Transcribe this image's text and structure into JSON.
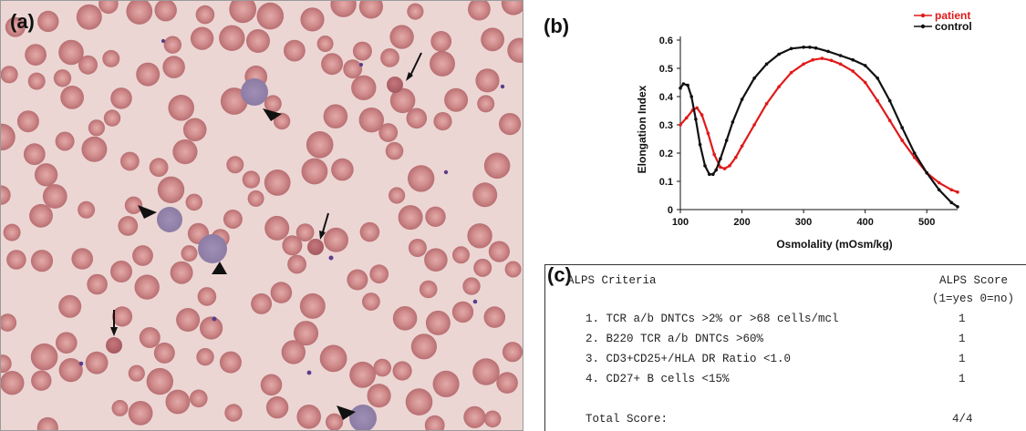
{
  "panels": {
    "a": "(a)",
    "b": "(b)",
    "c": "(c)"
  },
  "chart_data": [
    {
      "type": "line",
      "xlabel": "Osmolality (mOsm/kg)",
      "ylabel": "Elongation Index",
      "xlim": [
        100,
        550
      ],
      "ylim": [
        0,
        0.6
      ],
      "xticks": [
        100,
        200,
        300,
        400,
        500
      ],
      "yticks": [
        0,
        0.1,
        0.2,
        0.3,
        0.4,
        0.5,
        0.6
      ],
      "grid": false,
      "legend_position": "top-right",
      "series": [
        {
          "name": "patient",
          "color": "#e01a1a",
          "x": [
            100,
            110,
            120,
            127,
            135,
            145,
            155,
            165,
            172,
            180,
            190,
            200,
            220,
            240,
            260,
            280,
            300,
            315,
            330,
            345,
            360,
            380,
            400,
            420,
            440,
            460,
            480,
            500,
            520,
            540,
            550
          ],
          "y": [
            0.3,
            0.325,
            0.352,
            0.36,
            0.335,
            0.27,
            0.195,
            0.15,
            0.145,
            0.155,
            0.185,
            0.225,
            0.3,
            0.375,
            0.435,
            0.485,
            0.515,
            0.53,
            0.535,
            0.528,
            0.515,
            0.49,
            0.45,
            0.385,
            0.315,
            0.245,
            0.185,
            0.13,
            0.095,
            0.07,
            0.062
          ]
        },
        {
          "name": "control",
          "color": "#111111",
          "x": [
            100,
            105,
            112,
            118,
            125,
            132,
            140,
            147,
            153,
            158,
            165,
            175,
            185,
            200,
            220,
            240,
            260,
            280,
            300,
            310,
            320,
            340,
            360,
            380,
            400,
            420,
            440,
            460,
            480,
            500,
            520,
            540,
            550
          ],
          "y": [
            0.43,
            0.445,
            0.44,
            0.4,
            0.32,
            0.23,
            0.155,
            0.125,
            0.125,
            0.14,
            0.18,
            0.245,
            0.31,
            0.39,
            0.465,
            0.515,
            0.55,
            0.57,
            0.575,
            0.575,
            0.572,
            0.56,
            0.545,
            0.53,
            0.51,
            0.465,
            0.385,
            0.29,
            0.2,
            0.13,
            0.07,
            0.025,
            0.01
          ]
        }
      ]
    },
    {
      "type": "table",
      "headers": [
        "ALPS Criteria",
        "ALPS Score"
      ],
      "score_subheader": "(1=yes 0=no)",
      "rows": [
        {
          "criterion": "1. TCR a/b DNTCs >2% or >68 cells/mcl",
          "score": "1"
        },
        {
          "criterion": "2. B220 TCR a/b DNTCs >60%",
          "score": "1"
        },
        {
          "criterion": "3. CD3+CD25+/HLA DR Ratio <1.0",
          "score": "1"
        },
        {
          "criterion": "4. CD27+ B cells <15%",
          "score": "1"
        }
      ],
      "total_label": "Total Score:",
      "total_value": "4/4"
    }
  ]
}
